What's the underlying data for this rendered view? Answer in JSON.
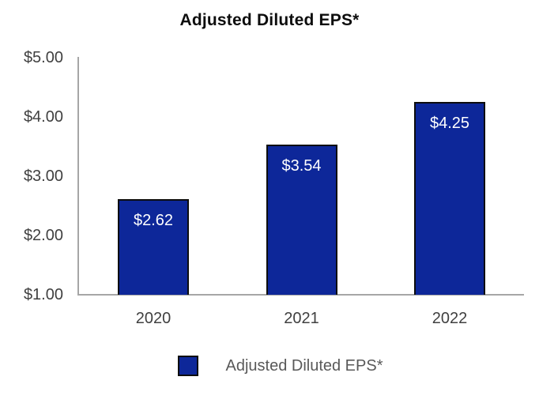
{
  "chart_data": {
    "type": "bar",
    "title": "Adjusted Diluted EPS*",
    "categories": [
      "2020",
      "2021",
      "2022"
    ],
    "values": [
      2.62,
      3.54,
      4.25
    ],
    "value_labels": [
      "$2.62",
      "$3.54",
      "$4.25"
    ],
    "y_ticks": [
      "$5.00",
      "$4.00",
      "$3.00",
      "$2.00",
      "$1.00"
    ],
    "y_tick_values": [
      5.0,
      4.0,
      3.0,
      2.0,
      1.0
    ],
    "ylim": [
      1.0,
      5.0
    ],
    "xlabel": "",
    "ylabel": "",
    "grid": false,
    "legend": {
      "label": "Adjusted Diluted EPS*",
      "position": "bottom"
    },
    "colors": {
      "bar_fill": "#0d2799",
      "bar_border": "#0d0d0d",
      "axis_line": "#a6a6a6",
      "tick_text": "#404040",
      "value_text": "#ffffff",
      "title_text": "#0d0d0d",
      "legend_text": "#595959",
      "background": "#ffffff"
    }
  }
}
